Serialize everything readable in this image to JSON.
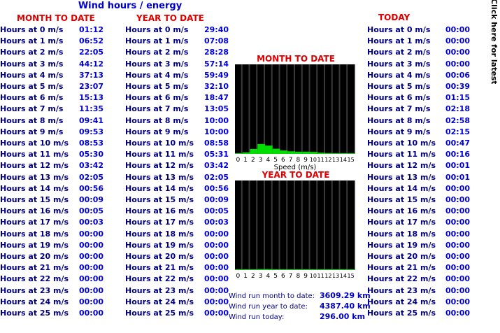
{
  "title": "Wind hours / energy",
  "sections": {
    "month": "MONTH TO DATE",
    "year": "YEAR TO DATE",
    "today": "TODAY"
  },
  "labels": [
    "Hours at 0 m/s",
    "Hours at 1 m/s",
    "Hours at 2 m/s",
    "Hours at 3 m/s",
    "Hours at 4 m/s",
    "Hours at 5 m/s",
    "Hours at 6 m/s",
    "Hours at 7 m/s",
    "Hours at 8 m/s",
    "Hours at 9 m/s",
    "Hours at 10 m/s",
    "Hours at 11 m/s",
    "Hours at 12 m/s",
    "Hours at 13 m/s",
    "Hours at 14 m/s",
    "Hours at 15 m/s",
    "Hours at 16 m/s",
    "Hours at 17 m/s",
    "Hours at 18 m/s",
    "Hours at 19 m/s",
    "Hours at 20 m/s",
    "Hours at 21 m/s",
    "Hours at 22 m/s",
    "Hours at 23 m/s",
    "Hours at 24 m/s",
    "Hours at 25 m/s"
  ],
  "month_values": [
    "01:12",
    "06:52",
    "22:05",
    "44:12",
    "37:13",
    "23:07",
    "15:13",
    "11:35",
    "09:41",
    "09:53",
    "08:53",
    "05:30",
    "03:42",
    "02:05",
    "00:56",
    "00:09",
    "00:05",
    "00:03",
    "00:00",
    "00:00",
    "00:00",
    "00:00",
    "00:00",
    "00:00",
    "00:00",
    "00:00"
  ],
  "year_values": [
    "29:40",
    "07:08",
    "28:28",
    "57:14",
    "59:49",
    "32:10",
    "18:47",
    "13:05",
    "10:00",
    "10:00",
    "08:58",
    "05:31",
    "03:42",
    "02:05",
    "00:56",
    "00:09",
    "00:05",
    "00:03",
    "00:00",
    "00:00",
    "00:00",
    "00:00",
    "00:00",
    "00:00",
    "00:00",
    "00:00"
  ],
  "today_values": [
    "00:00",
    "00:00",
    "00:00",
    "00:00",
    "00:06",
    "00:39",
    "01:15",
    "02:18",
    "02:58",
    "02:15",
    "00:47",
    "00:16",
    "00:01",
    "00:01",
    "00:00",
    "00:00",
    "00:00",
    "00:00",
    "00:00",
    "00:00",
    "00:00",
    "00:00",
    "00:00",
    "00:00",
    "00:00",
    "00:00"
  ],
  "chart_data": [
    {
      "type": "bar",
      "title": "MONTH TO DATE",
      "xlabel": "Speed (m/s)",
      "categories": [
        "0",
        "1",
        "2",
        "3",
        "4",
        "5",
        "6",
        "7",
        "8",
        "9",
        "10",
        "11",
        "12",
        "13",
        "14",
        "15"
      ],
      "values": [
        1.2,
        6.87,
        22.08,
        44.2,
        37.22,
        23.12,
        15.22,
        11.58,
        9.68,
        9.88,
        8.88,
        5.5,
        3.7,
        2.08,
        0.93,
        0.15
      ],
      "ylim": [
        0,
        400
      ],
      "bar_color": "#00dd00",
      "background": "#000000"
    },
    {
      "type": "bar",
      "title": "YEAR TO DATE",
      "xlabel": "",
      "categories": [
        "0",
        "1",
        "2",
        "3",
        "4",
        "5",
        "6",
        "7",
        "8",
        "9",
        "10",
        "11",
        "12",
        "13",
        "14",
        "15"
      ],
      "values": [
        29.67,
        7.13,
        28.47,
        57.23,
        59.82,
        32.17,
        18.78,
        13.08,
        10.0,
        10.0,
        8.97,
        5.52,
        3.7,
        2.08,
        0.93,
        0.15
      ],
      "ylim": [
        0,
        6000
      ],
      "bar_color": "#00dd00",
      "background": "#000000"
    }
  ],
  "run": {
    "month_label": "Wind run month to date:",
    "month_value": "3609.29 km",
    "year_label": "Wind run year to date:",
    "year_value": "4387.40 km",
    "today_label": "Wind run today:",
    "today_value": "296.00 km"
  },
  "side_link": "Click here for latest"
}
